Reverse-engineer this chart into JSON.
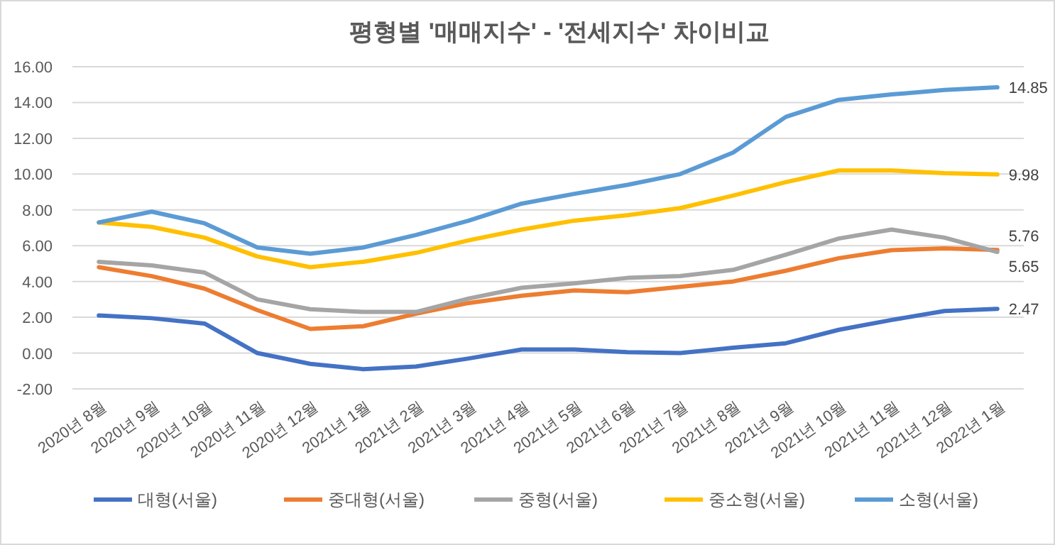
{
  "chart_data": {
    "type": "line",
    "title": "평형별 '매매지수' - '전세지수' 차이비교",
    "categories": [
      "2020년 8월",
      "2020년 9월",
      "2020년 10월",
      "2020년 11월",
      "2020년 12월",
      "2021년 1월",
      "2021년 2월",
      "2021년 3월",
      "2021년 4월",
      "2021년 5월",
      "2021년 6월",
      "2021년 7월",
      "2021년 8월",
      "2021년 9월",
      "2021년 10월",
      "2021년 11월",
      "2021년 12월",
      "2022년 1월"
    ],
    "series": [
      {
        "name": "대형(서울)",
        "color": "#4472c4",
        "values": [
          2.1,
          1.95,
          1.65,
          0.0,
          -0.6,
          -0.9,
          -0.75,
          -0.3,
          0.2,
          0.2,
          0.05,
          0.0,
          0.3,
          0.55,
          1.3,
          1.85,
          2.35,
          2.47
        ],
        "value_labels": [
          null,
          null,
          null,
          null,
          null,
          null,
          null,
          null,
          null,
          null,
          null,
          null,
          null,
          null,
          null,
          null,
          null,
          "2.47"
        ]
      },
      {
        "name": "중대형(서울)",
        "color": "#ed7d31",
        "values": [
          4.8,
          4.3,
          3.6,
          2.4,
          1.35,
          1.5,
          2.2,
          2.8,
          3.2,
          3.5,
          3.4,
          3.7,
          4.0,
          4.6,
          5.3,
          5.75,
          5.85,
          5.76
        ],
        "value_labels": [
          null,
          null,
          null,
          null,
          null,
          null,
          null,
          null,
          null,
          null,
          null,
          null,
          null,
          null,
          null,
          null,
          null,
          "5.76"
        ]
      },
      {
        "name": "중형(서울)",
        "color": "#a5a5a5",
        "values": [
          5.1,
          4.9,
          4.5,
          3.0,
          2.45,
          2.3,
          2.3,
          3.05,
          3.65,
          3.9,
          4.2,
          4.3,
          4.65,
          5.5,
          6.4,
          6.9,
          6.45,
          5.65
        ],
        "value_labels": [
          null,
          null,
          null,
          null,
          null,
          null,
          null,
          null,
          null,
          null,
          null,
          null,
          null,
          null,
          null,
          null,
          null,
          "5.65"
        ]
      },
      {
        "name": "중소형(서울)",
        "color": "#ffc000",
        "values": [
          7.3,
          7.05,
          6.45,
          5.4,
          4.8,
          5.1,
          5.6,
          6.3,
          6.9,
          7.4,
          7.7,
          8.1,
          8.8,
          9.55,
          10.2,
          10.2,
          10.05,
          9.98
        ],
        "value_labels": [
          null,
          null,
          null,
          null,
          null,
          null,
          null,
          null,
          null,
          null,
          null,
          null,
          null,
          null,
          null,
          null,
          null,
          "9.98"
        ]
      },
      {
        "name": "소형(서울)",
        "color": "#5b9bd5",
        "values": [
          7.3,
          7.9,
          7.25,
          5.9,
          5.55,
          5.9,
          6.6,
          7.4,
          8.35,
          8.9,
          9.4,
          10.0,
          11.2,
          13.2,
          14.15,
          14.45,
          14.7,
          14.85
        ],
        "value_labels": [
          null,
          null,
          null,
          null,
          null,
          null,
          null,
          null,
          null,
          null,
          null,
          null,
          null,
          null,
          null,
          null,
          null,
          "14.85"
        ]
      }
    ],
    "ylim": [
      -2,
      16
    ],
    "yticks": [
      {
        "value": -2,
        "label": "-2.00"
      },
      {
        "value": 0,
        "label": "0.00"
      },
      {
        "value": 2,
        "label": "2.00"
      },
      {
        "value": 4,
        "label": "4.00"
      },
      {
        "value": 6,
        "label": "6.00"
      },
      {
        "value": 8,
        "label": "8.00"
      },
      {
        "value": 10,
        "label": "10.00"
      },
      {
        "value": 12,
        "label": "12.00"
      },
      {
        "value": 14,
        "label": "14.00"
      },
      {
        "value": 16,
        "label": "16.00"
      }
    ],
    "grid": "y",
    "legend": "bottom",
    "marker": "none",
    "line_style": "solid"
  }
}
